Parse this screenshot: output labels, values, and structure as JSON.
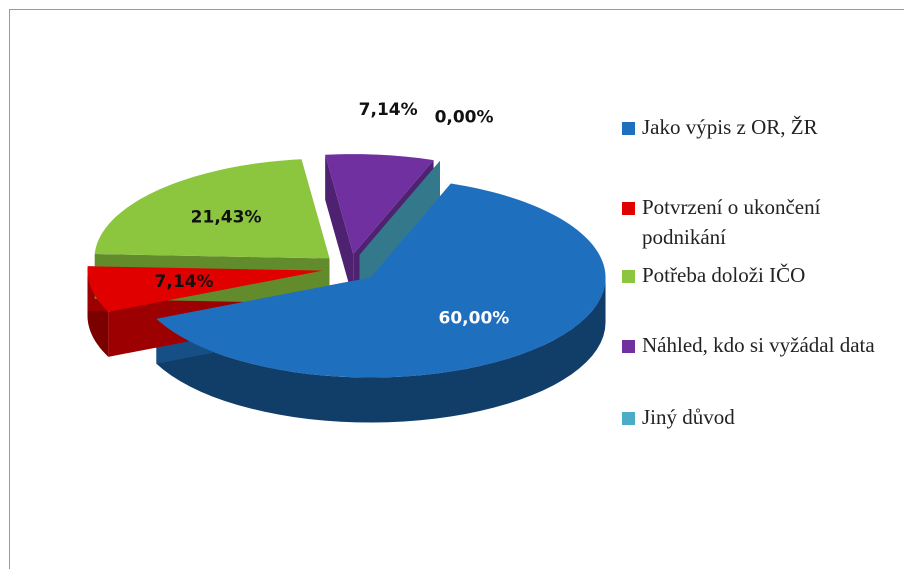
{
  "chart_data": {
    "type": "pie",
    "categories": [
      "Jako výpis z OR, ŽR",
      "Potvrzení o ukončení podnikání",
      "Potřeba doloži IČO",
      "Náhled, kdo si vyžádal data",
      "Jiný důvod"
    ],
    "values": [
      60.0,
      7.14,
      21.43,
      7.14,
      0.0
    ],
    "value_labels": [
      "60,00%",
      "7,14%",
      "21,43%",
      "7,14%",
      "0,00%"
    ],
    "colors": [
      "#1f6fbf",
      "#e00000",
      "#8cc63f",
      "#7030a0",
      "#4aacc6"
    ],
    "legend": "right"
  }
}
